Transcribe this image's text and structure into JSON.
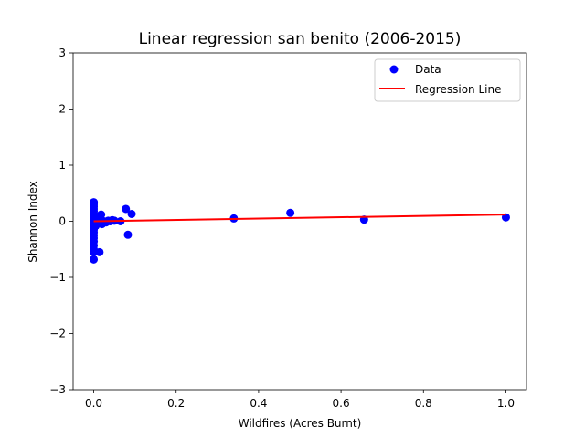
{
  "chart_data": {
    "type": "scatter",
    "title": "Linear regression san benito (2006-2015)",
    "xlabel": "Wildfires (Acres Burnt)",
    "ylabel": "Shannon Index",
    "xlim": [
      -0.05,
      1.05
    ],
    "ylim": [
      -3,
      3
    ],
    "xticks": [
      0.0,
      0.2,
      0.4,
      0.6,
      0.8,
      1.0
    ],
    "xtick_labels": [
      "0.0",
      "0.2",
      "0.4",
      "0.6",
      "0.8",
      "1.0"
    ],
    "yticks": [
      -3,
      -2,
      -1,
      0,
      1,
      2,
      3
    ],
    "ytick_labels": [
      "−3",
      "−2",
      "−1",
      "0",
      "1",
      "2",
      "3"
    ],
    "grid": false,
    "legend_position": "top-right",
    "colors": {
      "data": "#0000ff",
      "regression": "#ff0000"
    },
    "series": [
      {
        "name": "Data",
        "kind": "scatter",
        "points": [
          [
            0.0,
            0.34
          ],
          [
            0.0,
            0.3
          ],
          [
            0.0,
            0.26
          ],
          [
            0.0,
            0.22
          ],
          [
            0.0,
            0.18
          ],
          [
            0.0,
            0.14
          ],
          [
            0.0,
            0.1
          ],
          [
            0.0,
            0.06
          ],
          [
            0.0,
            0.02
          ],
          [
            0.0,
            -0.02
          ],
          [
            0.0,
            -0.06
          ],
          [
            0.0,
            -0.1
          ],
          [
            0.0,
            -0.15
          ],
          [
            0.0,
            -0.2
          ],
          [
            0.0,
            -0.25
          ],
          [
            0.0,
            -0.3
          ],
          [
            0.0,
            -0.36
          ],
          [
            0.0,
            -0.43
          ],
          [
            0.0,
            -0.5
          ],
          [
            0.0,
            -0.55
          ],
          [
            0.0,
            -0.68
          ],
          [
            0.002,
            0.08
          ],
          [
            0.003,
            -0.04
          ],
          [
            0.004,
            0.03
          ],
          [
            0.005,
            -0.08
          ],
          [
            0.006,
            0.01
          ],
          [
            0.008,
            -0.02
          ],
          [
            0.01,
            0.0
          ],
          [
            0.012,
            -0.03
          ],
          [
            0.014,
            -0.55
          ],
          [
            0.016,
            0.05
          ],
          [
            0.018,
            0.12
          ],
          [
            0.02,
            -0.05
          ],
          [
            0.025,
            0.0
          ],
          [
            0.03,
            -0.02
          ],
          [
            0.035,
            0.01
          ],
          [
            0.04,
            0.0
          ],
          [
            0.045,
            0.02
          ],
          [
            0.05,
            0.01
          ],
          [
            0.065,
            0.0
          ],
          [
            0.078,
            0.22
          ],
          [
            0.083,
            -0.24
          ],
          [
            0.092,
            0.13
          ],
          [
            0.34,
            0.05
          ],
          [
            0.477,
            0.15
          ],
          [
            0.656,
            0.03
          ],
          [
            1.0,
            0.07
          ]
        ]
      },
      {
        "name": "Regression Line",
        "kind": "line",
        "points": [
          [
            0.0,
            0.0
          ],
          [
            1.0,
            0.12
          ]
        ]
      }
    ]
  }
}
